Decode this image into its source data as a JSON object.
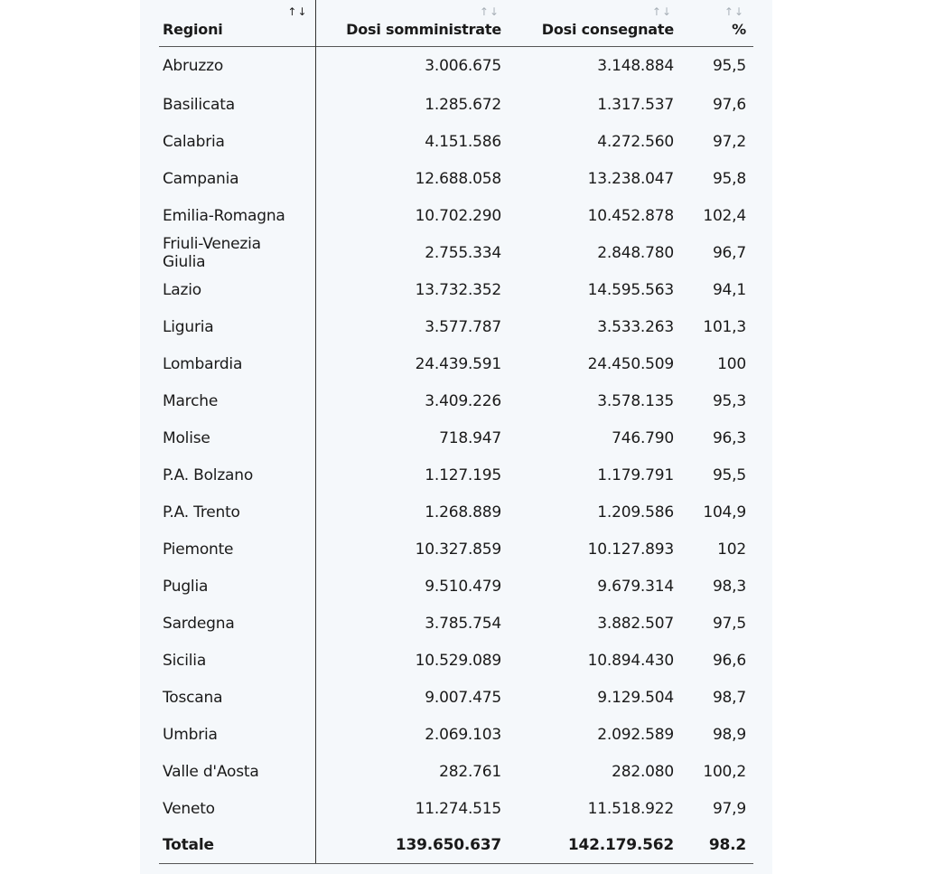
{
  "table": {
    "headers": {
      "region": "Regioni",
      "administered": "Dosi somministrate",
      "delivered": "Dosi consegnate",
      "percent": "%"
    },
    "sort_glyph": "↑↓",
    "rows": [
      {
        "region": "Abruzzo",
        "administered": "3.006.675",
        "delivered": "3.148.884",
        "percent": "95,5"
      },
      {
        "region": "Basilicata",
        "administered": "1.285.672",
        "delivered": "1.317.537",
        "percent": "97,6"
      },
      {
        "region": "Calabria",
        "administered": "4.151.586",
        "delivered": "4.272.560",
        "percent": "97,2"
      },
      {
        "region": "Campania",
        "administered": "12.688.058",
        "delivered": "13.238.047",
        "percent": "95,8"
      },
      {
        "region": "Emilia-Romagna",
        "administered": "10.702.290",
        "delivered": "10.452.878",
        "percent": "102,4"
      },
      {
        "region": "Friuli-Venezia Giulia",
        "administered": "2.755.334",
        "delivered": "2.848.780",
        "percent": "96,7"
      },
      {
        "region": "Lazio",
        "administered": "13.732.352",
        "delivered": "14.595.563",
        "percent": "94,1"
      },
      {
        "region": "Liguria",
        "administered": "3.577.787",
        "delivered": "3.533.263",
        "percent": "101,3"
      },
      {
        "region": "Lombardia",
        "administered": "24.439.591",
        "delivered": "24.450.509",
        "percent": "100"
      },
      {
        "region": "Marche",
        "administered": "3.409.226",
        "delivered": "3.578.135",
        "percent": "95,3"
      },
      {
        "region": "Molise",
        "administered": "718.947",
        "delivered": "746.790",
        "percent": "96,3"
      },
      {
        "region": "P.A. Bolzano",
        "administered": "1.127.195",
        "delivered": "1.179.791",
        "percent": "95,5"
      },
      {
        "region": "P.A. Trento",
        "administered": "1.268.889",
        "delivered": "1.209.586",
        "percent": "104,9"
      },
      {
        "region": "Piemonte",
        "administered": "10.327.859",
        "delivered": "10.127.893",
        "percent": "102"
      },
      {
        "region": "Puglia",
        "administered": "9.510.479",
        "delivered": "9.679.314",
        "percent": "98,3"
      },
      {
        "region": "Sardegna",
        "administered": "3.785.754",
        "delivered": "3.882.507",
        "percent": "97,5"
      },
      {
        "region": "Sicilia",
        "administered": "10.529.089",
        "delivered": "10.894.430",
        "percent": "96,6"
      },
      {
        "region": "Toscana",
        "administered": "9.007.475",
        "delivered": "9.129.504",
        "percent": "98,7"
      },
      {
        "region": "Umbria",
        "administered": "2.069.103",
        "delivered": "2.092.589",
        "percent": "98,9"
      },
      {
        "region": "Valle d'Aosta",
        "administered": "282.761",
        "delivered": "282.080",
        "percent": "100,2"
      },
      {
        "region": "Veneto",
        "administered": "11.274.515",
        "delivered": "11.518.922",
        "percent": "97,9"
      }
    ],
    "total": {
      "region": "Totale",
      "administered": "139.650.637",
      "delivered": "142.179.562",
      "percent": "98.2"
    }
  }
}
